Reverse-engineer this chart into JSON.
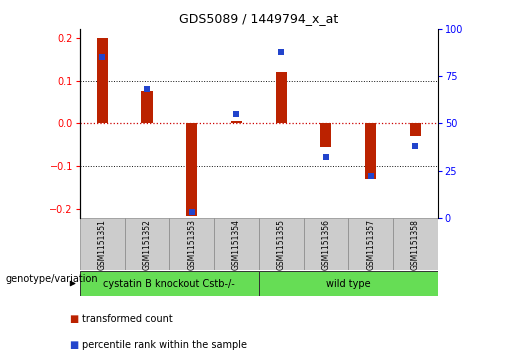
{
  "title": "GDS5089 / 1449794_x_at",
  "samples": [
    "GSM1151351",
    "GSM1151352",
    "GSM1151353",
    "GSM1151354",
    "GSM1151355",
    "GSM1151356",
    "GSM1151357",
    "GSM1151358"
  ],
  "transformed_count": [
    0.2,
    0.075,
    -0.215,
    0.005,
    0.12,
    -0.055,
    -0.13,
    -0.03
  ],
  "percentile_rank": [
    85,
    68,
    3,
    55,
    88,
    32,
    22,
    38
  ],
  "ylim": [
    -0.22,
    0.22
  ],
  "yticks_left": [
    -0.2,
    -0.1,
    0,
    0.1,
    0.2
  ],
  "yticks_right": [
    0,
    25,
    50,
    75,
    100
  ],
  "bar_color": "#bb2200",
  "dot_color": "#2244cc",
  "zero_line_color": "#cc0000",
  "grid_color": "#111111",
  "label_row_color": "#cccccc",
  "group_row_color": "#66dd55",
  "legend_red_label": "transformed count",
  "legend_blue_label": "percentile rank within the sample",
  "genotype_label": "genotype/variation",
  "group1_label": "cystatin B knockout Cstb-/-",
  "group2_label": "wild type",
  "bar_width": 0.25,
  "dot_size": 4.5,
  "title_fontsize": 9,
  "tick_fontsize": 7,
  "label_fontsize": 5.5,
  "group_fontsize": 7,
  "legend_fontsize": 7,
  "geno_fontsize": 7
}
